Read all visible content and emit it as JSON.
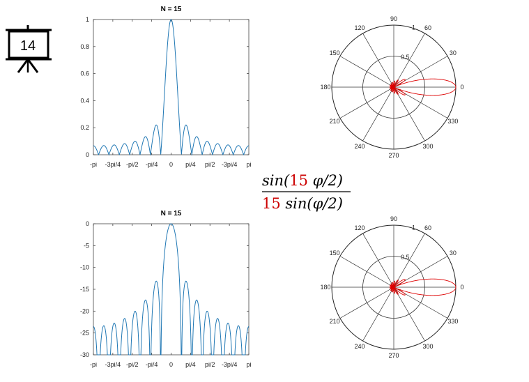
{
  "slide": {
    "number": "14"
  },
  "formula": {
    "numerator": {
      "prefix": "sin(",
      "n": "15",
      "suffix": " φ/2)"
    },
    "denominator": {
      "n": "15",
      "suffix": " sin(φ/2)"
    },
    "highlight_color": "#cc0000"
  },
  "chart_data": [
    {
      "type": "line",
      "title": "N = 15",
      "scale": "linear",
      "function": "abs(sin(N*phi/2)/(N*sin(phi/2)))",
      "N": 15,
      "xlim": [
        -3.14159,
        3.14159
      ],
      "ylim": [
        0,
        1
      ],
      "xticks": [
        "-pi",
        "-3pi/4",
        "-pi/2",
        "-pi/4",
        "0",
        "pi/4",
        "pi/2",
        "-3pi/4",
        "pi"
      ],
      "yticks": [
        "0",
        "0.2",
        "0.4",
        "0.6",
        "0.8",
        "1"
      ],
      "line_color": "#1f77b4"
    },
    {
      "type": "line",
      "title": "N = 15",
      "scale": "dB",
      "function": "20*log10(abs(sin(N*phi/2)/(N*sin(phi/2))))",
      "N": 15,
      "xlim": [
        -3.14159,
        3.14159
      ],
      "ylim": [
        -30,
        0
      ],
      "xticks": [
        "-pi",
        "-3pi/4",
        "-pi/2",
        "-pi/4",
        "0",
        "pi/4",
        "pi/2",
        "-3pi/4",
        "pi"
      ],
      "yticks": [
        "0",
        "-5",
        "-10",
        "-15",
        "-20",
        "-25",
        "-30"
      ],
      "line_color": "#1f77b4"
    },
    {
      "type": "polar",
      "scale": "linear",
      "N": 15,
      "rlim": [
        0,
        1
      ],
      "rticks": [
        "0.5",
        "1"
      ],
      "angle_ticks": [
        "0",
        "30",
        "60",
        "90",
        "120",
        "150",
        "180",
        "210",
        "240",
        "270",
        "300",
        "330"
      ],
      "line_color": "#dd0000"
    },
    {
      "type": "polar",
      "scale": "linear",
      "N": 15,
      "rlim": [
        0,
        1
      ],
      "rticks": [
        "0.5",
        "1"
      ],
      "angle_ticks": [
        "0",
        "30",
        "60",
        "90",
        "120",
        "150",
        "180",
        "210",
        "240",
        "270",
        "300",
        "330"
      ],
      "line_color": "#dd0000"
    }
  ]
}
